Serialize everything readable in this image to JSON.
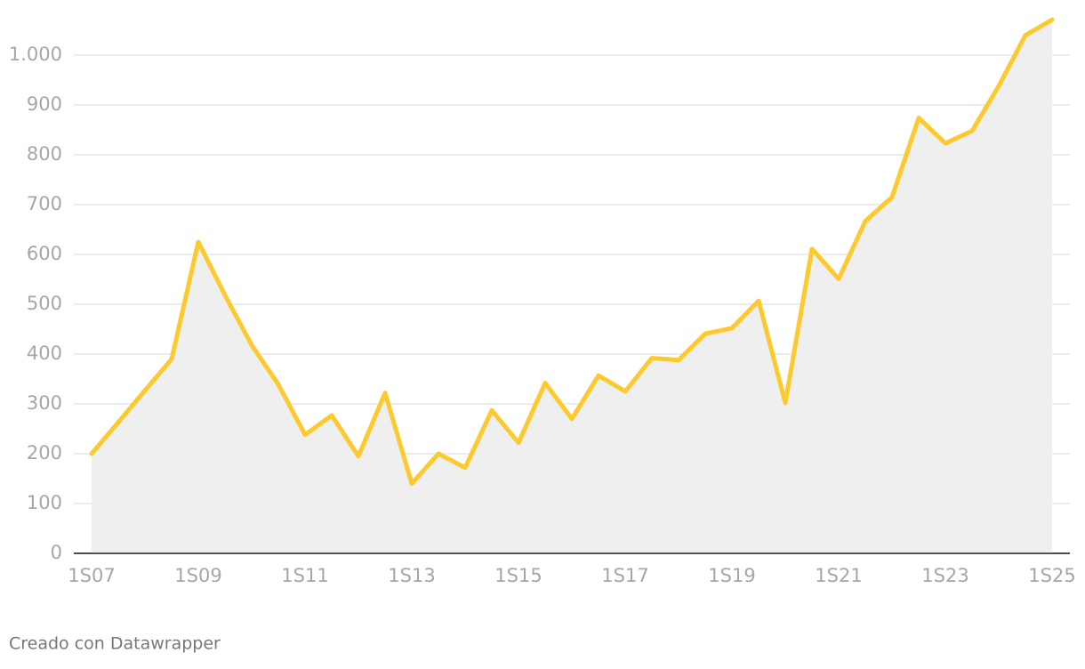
{
  "chart_data": {
    "type": "line",
    "categories": [
      "1S07",
      null,
      null,
      null,
      "1S09",
      null,
      null,
      null,
      "1S11",
      null,
      null,
      null,
      "1S13",
      null,
      null,
      null,
      "1S15",
      null,
      null,
      null,
      "1S17",
      null,
      null,
      null,
      "1S19",
      null,
      null,
      null,
      "1S21",
      null,
      null,
      null,
      "1S23",
      null,
      null,
      null,
      "1S25"
    ],
    "values": [
      200,
      263,
      327,
      390,
      625,
      518,
      418,
      339,
      238,
      277,
      195,
      322,
      140,
      200,
      172,
      287,
      222,
      342,
      270,
      357,
      325,
      392,
      388,
      441,
      452,
      507,
      302,
      611,
      551,
      667,
      715,
      874,
      823,
      848,
      938,
      1040,
      1071
    ],
    "color": "#fcca2f",
    "area_color": "#efefef",
    "ylim": [
      0,
      1075
    ],
    "yticks": [
      0,
      100,
      200,
      300,
      400,
      500,
      600,
      700,
      800,
      900,
      {
        "value": 1000,
        "label": "1.000"
      }
    ],
    "grid": true,
    "footer": "Creado con Datawrapper"
  }
}
